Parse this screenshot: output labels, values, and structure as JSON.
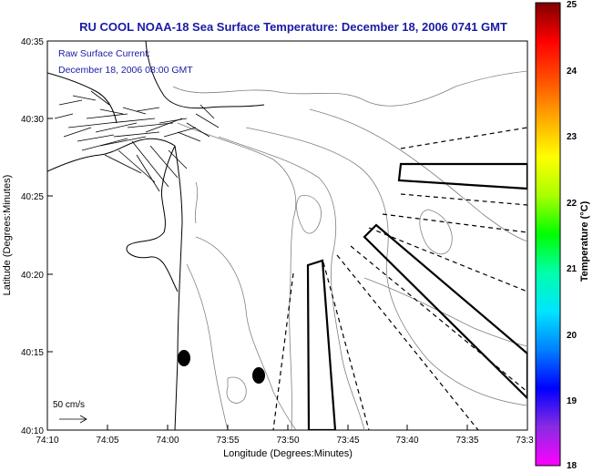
{
  "title": "RU COOL  NOAA-18  Sea Surface Temperature:  December 18, 2006 0741 GMT",
  "current_label_line1": "Raw Surface Current:",
  "current_label_line2": "December 18, 2006 08:00 GMT",
  "scale_label": "50 cm/s",
  "x_axis_label": "Longitude (Degrees:Minutes)",
  "y_axis_label": "Latitude (Degrees:Minutes)",
  "colorbar_label": "Temperature (°C)",
  "x_ticks": [
    "74:10",
    "74:05",
    "74:00",
    "73:55",
    "73:50",
    "73:45",
    "73:40",
    "73:35",
    "73:3"
  ],
  "y_ticks": [
    "40:35",
    "40:30",
    "40:25",
    "40:20",
    "40:15",
    "40:10"
  ],
  "colorbar_ticks": [
    "25",
    "24",
    "23",
    "22",
    "21",
    "20",
    "19",
    "18"
  ],
  "colorbar_colors": [
    "#ff00ff",
    "#8a2be2",
    "#0000ff",
    "#0080ff",
    "#00e5ff",
    "#00ffaa",
    "#00ff00",
    "#aaff00",
    "#ffff00",
    "#ffaa00",
    "#ff5000",
    "#ff0000",
    "#800000"
  ],
  "map_data": {
    "x_range_degmin": [
      "74:10",
      "73:30"
    ],
    "y_range_degmin": [
      "40:10",
      "40:35"
    ],
    "colorbar_range_c": [
      18,
      25
    ]
  }
}
